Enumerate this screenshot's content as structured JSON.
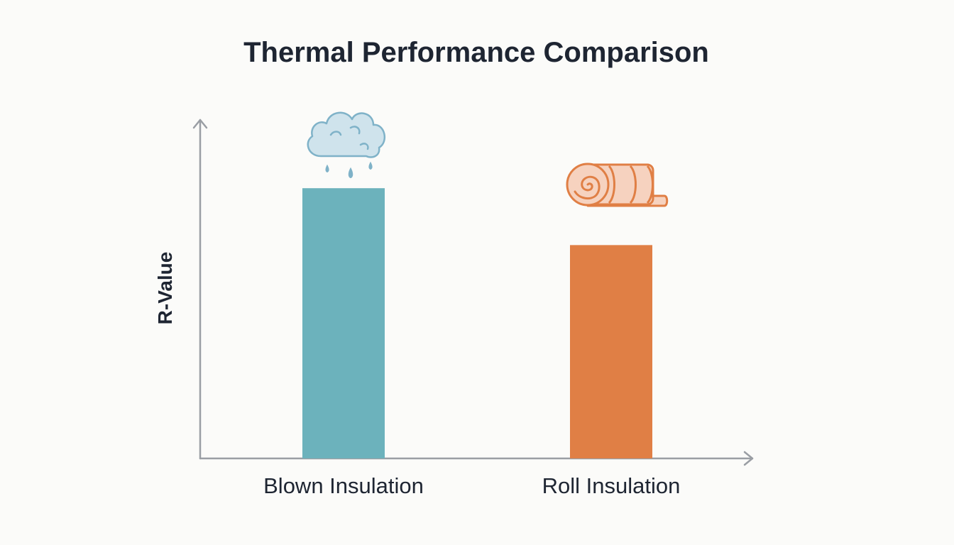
{
  "chart_data": {
    "type": "bar",
    "title": "Thermal Performance Comparison",
    "xlabel": "",
    "ylabel": "R-Value",
    "categories": [
      "Blown Insulation",
      "Roll Insulation"
    ],
    "values": [
      3.8,
      3.0
    ],
    "ylim": [
      0,
      4.75
    ],
    "grid": false,
    "legend": "none",
    "colors": [
      "#6cb2bc",
      "#e07f45"
    ],
    "icons": [
      "cloud-icon",
      "roll-icon"
    ],
    "y_axis_ticks": "none"
  }
}
